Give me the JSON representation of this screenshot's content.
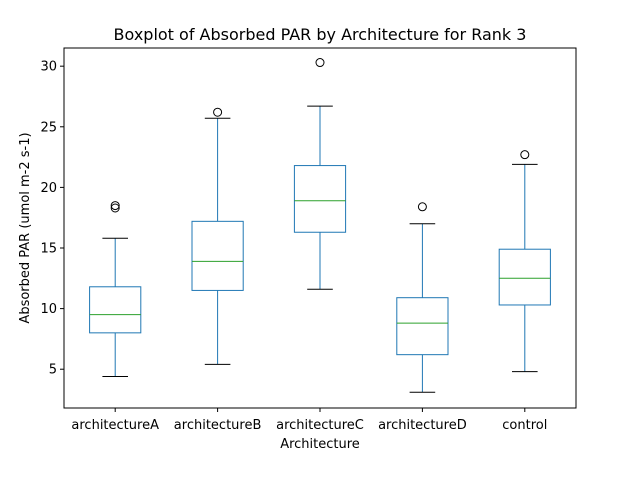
{
  "chart_data": {
    "type": "boxplot",
    "title": "Boxplot of Absorbed PAR by Architecture for Rank 3",
    "xlabel": "Architecture",
    "ylabel": "Absorbed PAR (umol m-2 s-1)",
    "ylim": [
      1.8,
      31.5
    ],
    "yticks": [
      5,
      10,
      15,
      20,
      25,
      30
    ],
    "grid": false,
    "categories": [
      "architectureA",
      "architectureB",
      "architectureC",
      "architectureD",
      "control"
    ],
    "boxes": [
      {
        "category": "architectureA",
        "whisker_low": 4.4,
        "q1": 8.0,
        "median": 9.5,
        "q3": 11.8,
        "whisker_high": 15.8,
        "outliers": [
          18.3,
          18.5
        ]
      },
      {
        "category": "architectureB",
        "whisker_low": 5.4,
        "q1": 11.5,
        "median": 13.9,
        "q3": 17.2,
        "whisker_high": 25.7,
        "outliers": [
          26.2
        ]
      },
      {
        "category": "architectureC",
        "whisker_low": 11.6,
        "q1": 16.3,
        "median": 18.9,
        "q3": 21.8,
        "whisker_high": 26.7,
        "outliers": [
          30.3
        ]
      },
      {
        "category": "architectureD",
        "whisker_low": 3.1,
        "q1": 6.2,
        "median": 8.8,
        "q3": 10.9,
        "whisker_high": 17.0,
        "outliers": [
          18.4
        ]
      },
      {
        "category": "control",
        "whisker_low": 4.8,
        "q1": 10.3,
        "median": 12.5,
        "q3": 14.9,
        "whisker_high": 21.9,
        "outliers": [
          22.7
        ]
      }
    ],
    "colors": {
      "box": "#1f77b4",
      "median": "#2ca02c",
      "whisker_cap": "#000000",
      "outlier": "#000000"
    }
  }
}
